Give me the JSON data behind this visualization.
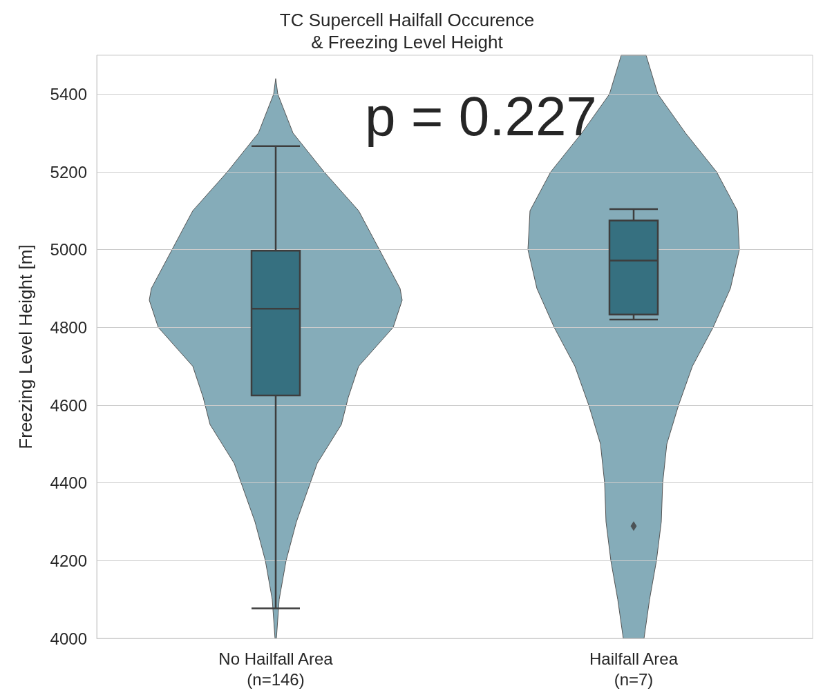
{
  "chart_data": {
    "type": "box",
    "title": "TC Supercell Hailfall Occurence\n& Freezing Level Height",
    "ylabel": "Freezing Level Height [m]",
    "categories": [
      "No Hailfall Area\n(n=146)",
      "Hailfall Area\n(n=7)"
    ],
    "series": [
      {
        "color": "#367080",
        "boxes": [
          {
            "low": 4077,
            "q1": 4625,
            "median": 4848,
            "q3": 4997,
            "high": 5266
          },
          {
            "low": 4820,
            "q1": 4833,
            "median": 4972,
            "q3": 5075,
            "high": 5104,
            "outliers": [
              4289
            ]
          }
        ]
      }
    ],
    "ylim": [
      4000,
      5500
    ],
    "yticks": [
      4000,
      4200,
      4400,
      4600,
      4800,
      5000,
      5200,
      5400
    ],
    "grid": "y",
    "marker": "diamond",
    "annotations": [
      "p = 0.227"
    ]
  }
}
